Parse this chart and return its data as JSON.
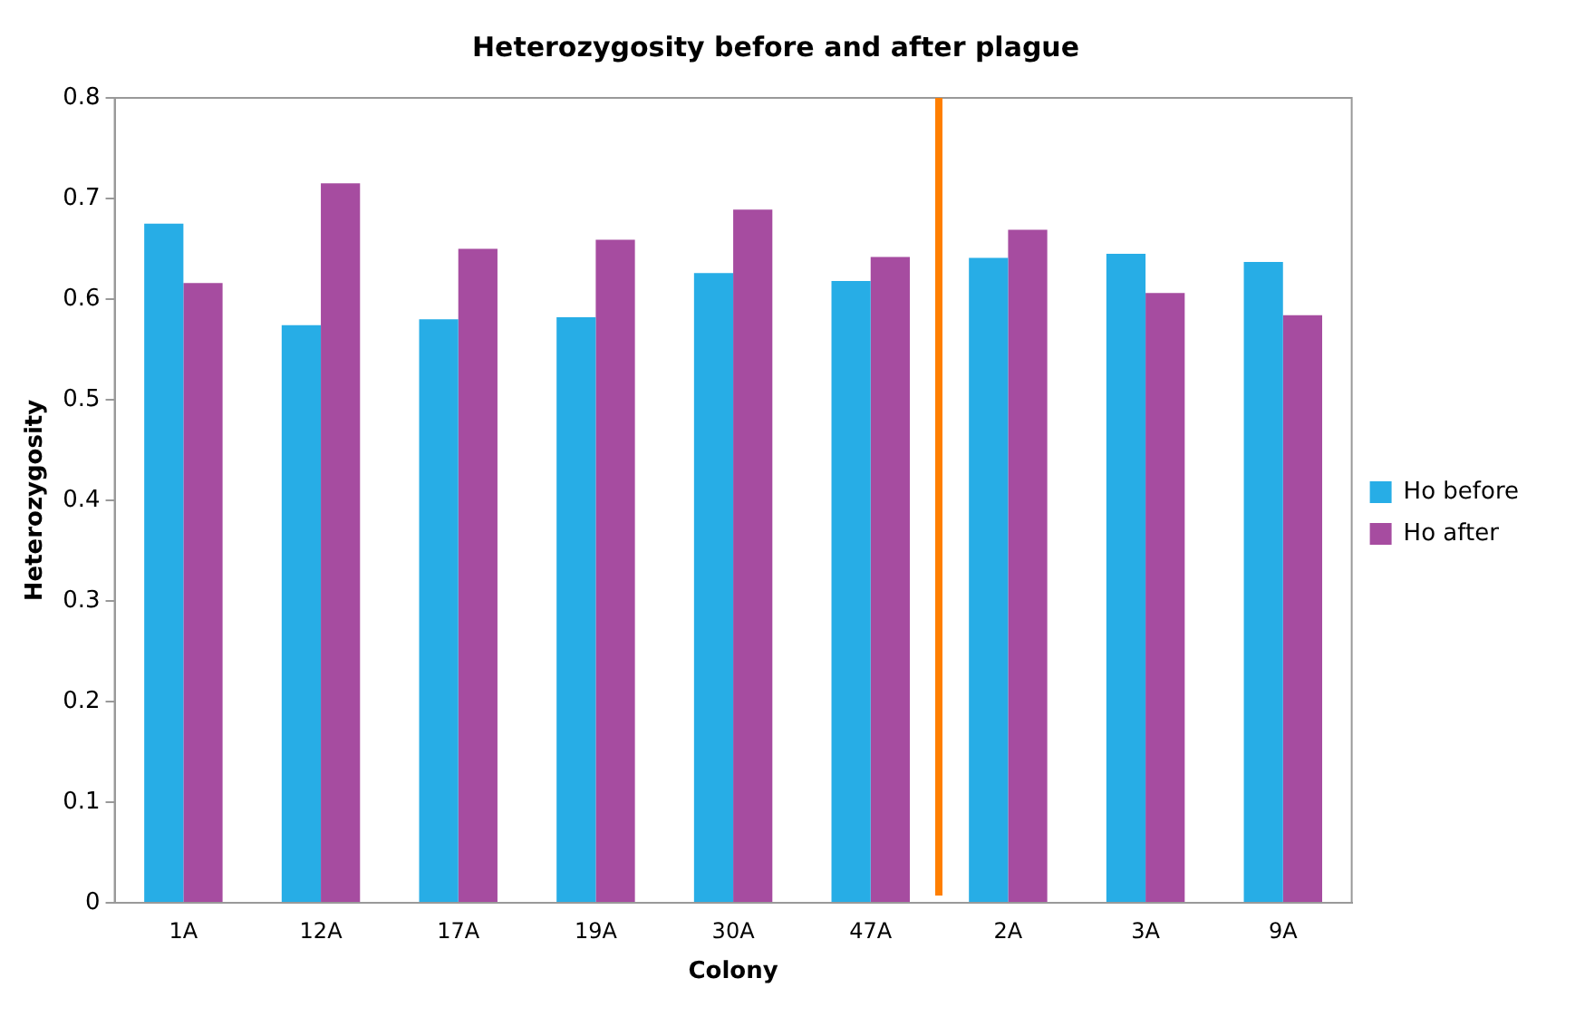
{
  "chart_data": {
    "type": "bar",
    "title": "Heterozygosity before and after plague",
    "xlabel": "Colony",
    "ylabel": "Heterozygosity",
    "categories": [
      "1A",
      "12A",
      "17A",
      "19A",
      "30A",
      "47A",
      "2A",
      "3A",
      "9A"
    ],
    "series": [
      {
        "name": "Ho before",
        "color": "#27ade6",
        "values": [
          0.675,
          0.574,
          0.58,
          0.582,
          0.626,
          0.618,
          0.641,
          0.645,
          0.637
        ]
      },
      {
        "name": "Ho after",
        "color": "#a64ca0",
        "values": [
          0.616,
          0.715,
          0.65,
          0.659,
          0.689,
          0.642,
          0.669,
          0.606,
          0.584
        ]
      }
    ],
    "ylim": [
      0,
      0.8
    ],
    "yticks": [
      0,
      0.1,
      0.2,
      0.3,
      0.4,
      0.5,
      0.6,
      0.7,
      0.8
    ],
    "grid": false,
    "legend": "right"
  }
}
